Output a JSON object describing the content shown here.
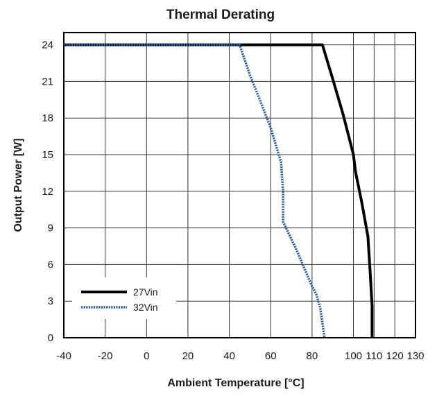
{
  "chart_data": {
    "type": "line",
    "title": "Thermal Derating",
    "xlabel": "Ambient Temperature [°C]",
    "ylabel": "Output Power [W]",
    "xlim": [
      -40,
      130
    ],
    "ylim": [
      0,
      25
    ],
    "grid": true,
    "legend_position": "bottom-left",
    "x_ticks": [
      -40,
      -20,
      0,
      20,
      40,
      60,
      80,
      100,
      110,
      120,
      130
    ],
    "x_tick_labels": [
      "-40",
      "-20",
      "0",
      "20",
      "40",
      "60",
      "80",
      "100",
      "110",
      "120",
      "130"
    ],
    "y_ticks": [
      0,
      3,
      6,
      9,
      12,
      15,
      18,
      21,
      24
    ],
    "y_tick_labels": [
      "0",
      "3",
      "6",
      "9",
      "12",
      "15",
      "18",
      "21",
      "24"
    ],
    "series": [
      {
        "name": "27Vin",
        "color": "#000000",
        "style": "solid",
        "x": [
          -40,
          85,
          90,
          95,
          100,
          101,
          104,
          107,
          108,
          109,
          109
        ],
        "y": [
          24,
          24,
          21.2,
          18.3,
          15,
          13.6,
          11.1,
          8.3,
          5.6,
          2.6,
          0
        ]
      },
      {
        "name": "32Vin",
        "color": "#2e5fa6",
        "style": "dotted",
        "x": [
          -40,
          45,
          50,
          55,
          60,
          65,
          66,
          66,
          73,
          80,
          82,
          84,
          86
        ],
        "y": [
          24,
          24,
          21.5,
          19.4,
          17.2,
          14.4,
          12,
          9.5,
          7,
          4.2,
          3.6,
          2.4,
          0
        ]
      }
    ]
  }
}
